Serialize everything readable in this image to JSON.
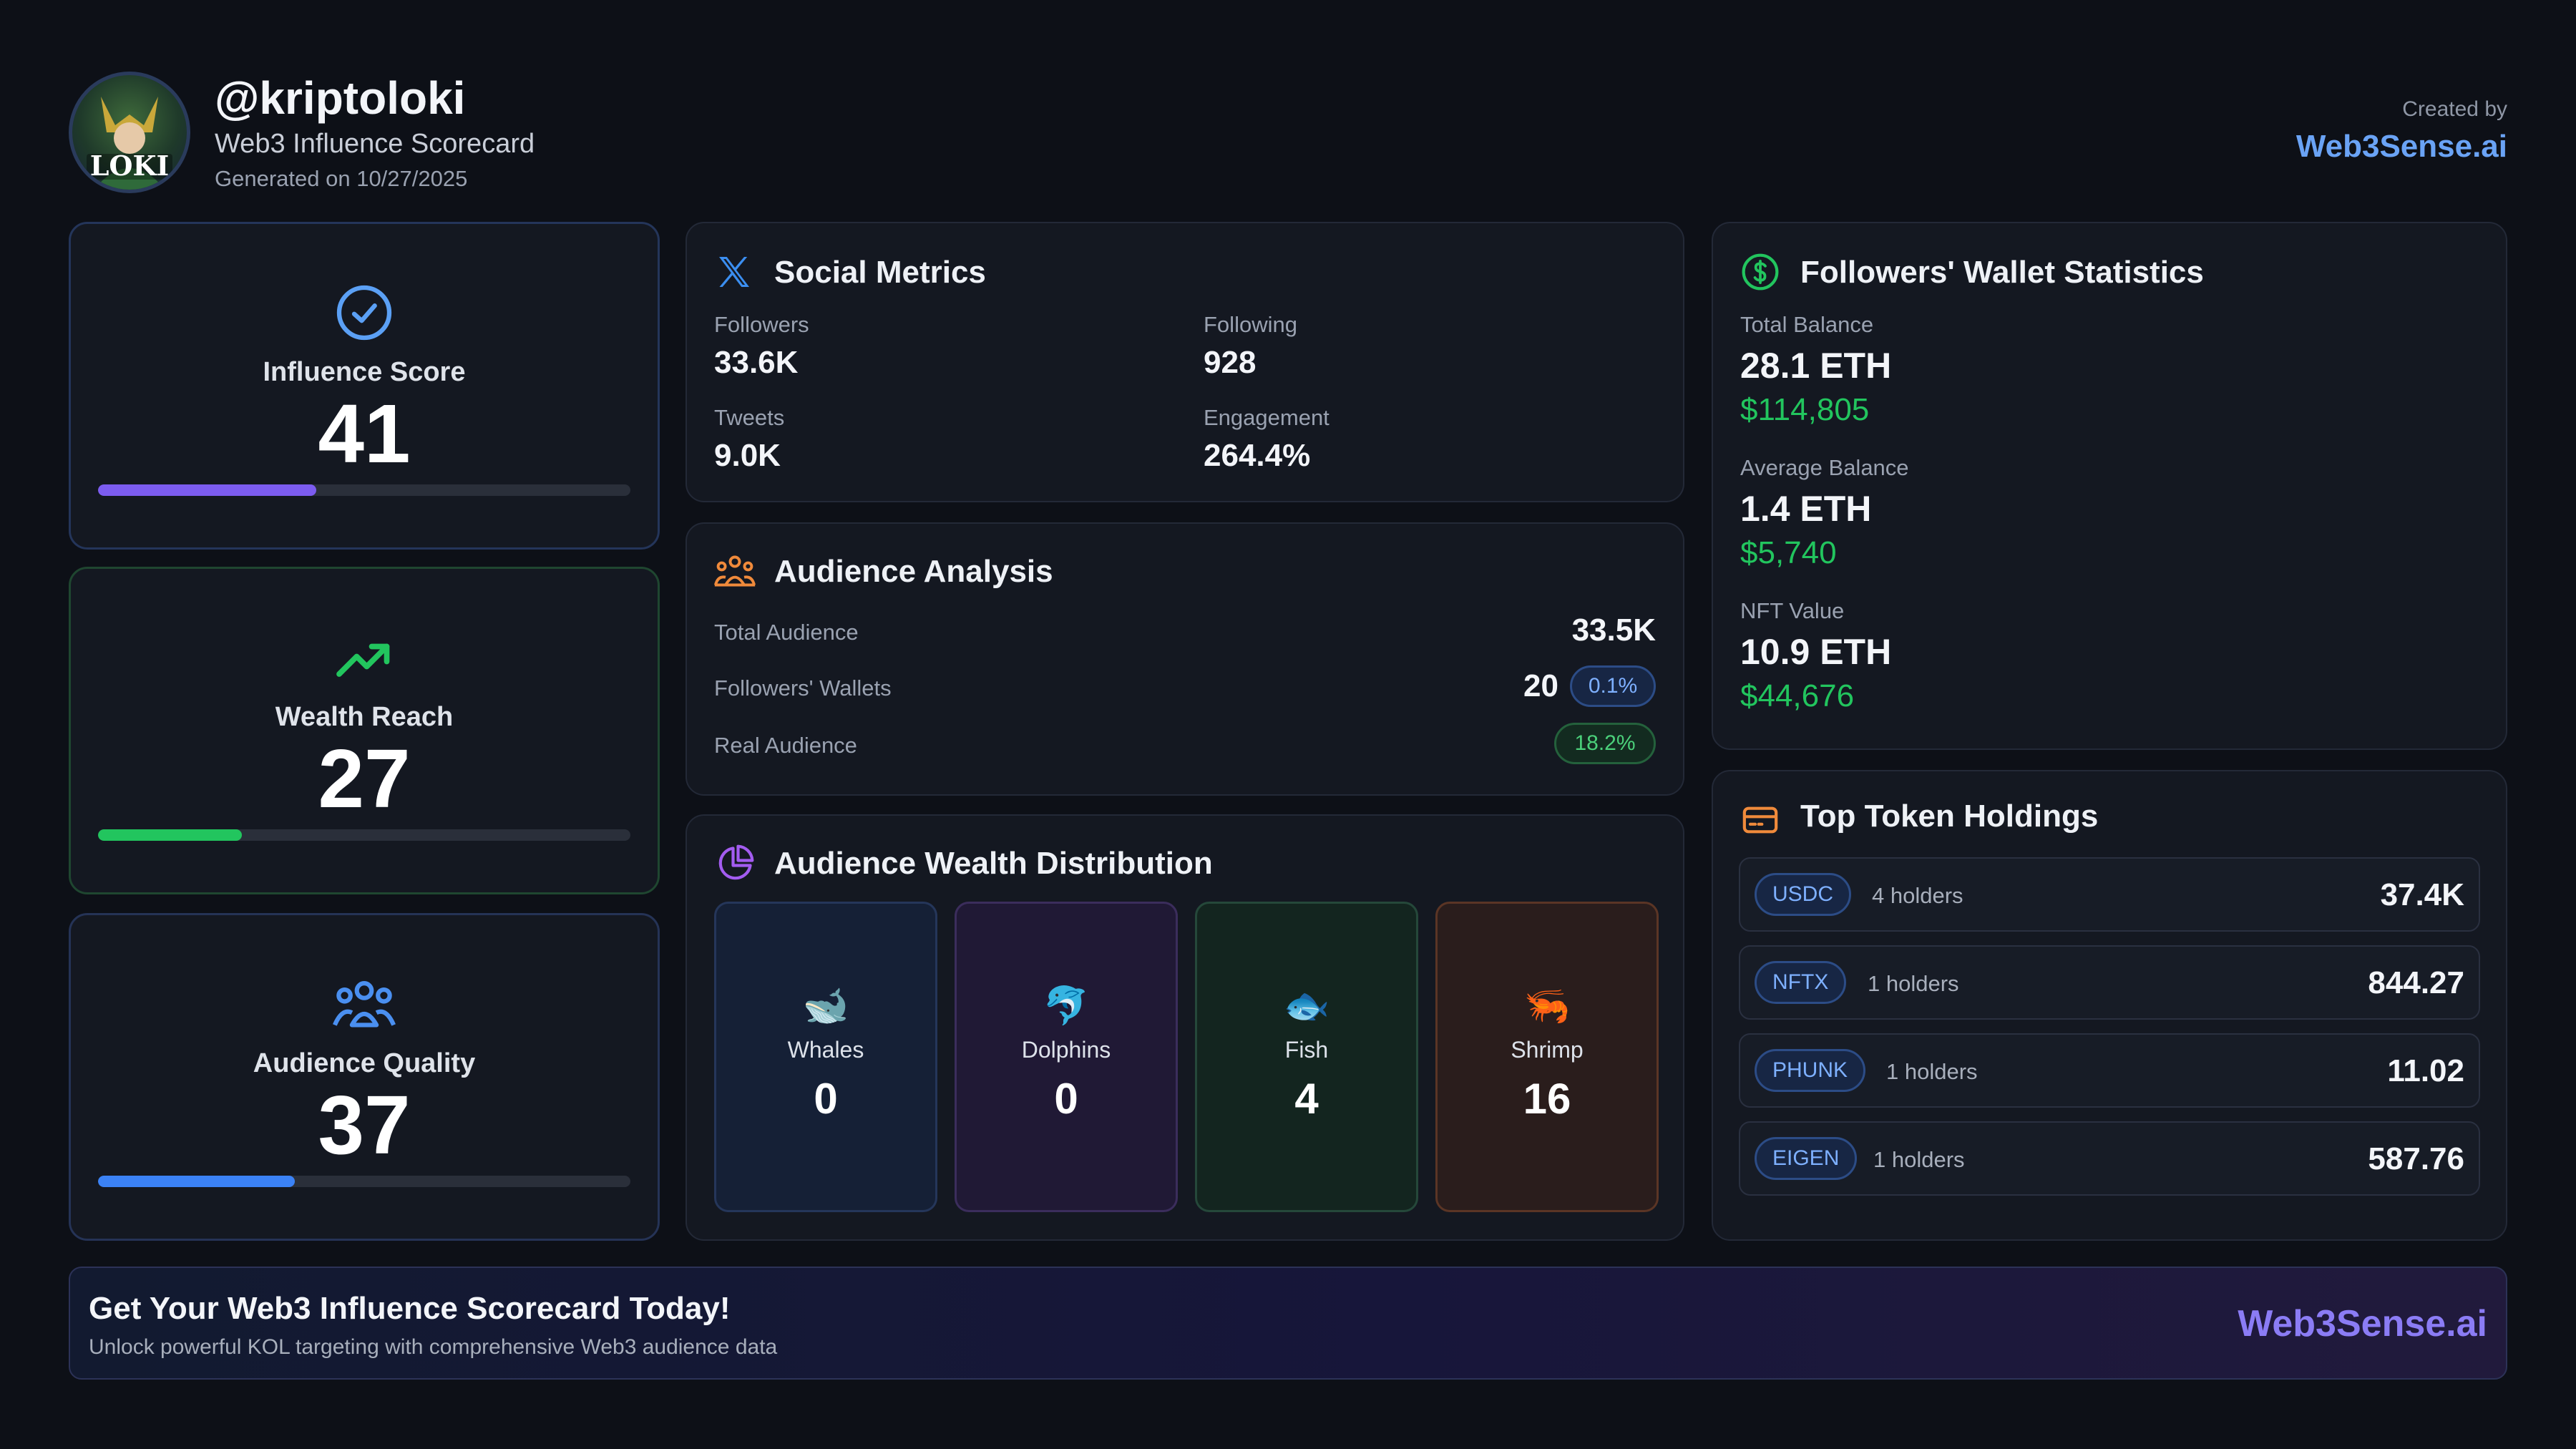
{
  "header": {
    "avatar_text": "LOKI",
    "handle": "@kriptoloki",
    "subtitle": "Web3 Influence Scorecard",
    "generated": "Generated on 10/27/2025",
    "created_by": "Created by",
    "brand": "Web3Sense.ai"
  },
  "scores": [
    {
      "label": "Influence Score",
      "value": "41",
      "progress": 0.41,
      "color": "#7c5cf0",
      "icon": "check-circle-icon"
    },
    {
      "label": "Wealth Reach",
      "value": "27",
      "progress": 0.27,
      "color": "#22c55e",
      "icon": "trending-up-icon"
    },
    {
      "label": "Audience Quality",
      "value": "37",
      "progress": 0.37,
      "color": "#3b82f6",
      "icon": "users-icon"
    }
  ],
  "social": {
    "title": "Social Metrics",
    "icon": "x-logo-icon",
    "followers_label": "Followers",
    "followers": "33.6K",
    "following_label": "Following",
    "following": "928",
    "tweets_label": "Tweets",
    "tweets": "9.0K",
    "engagement_label": "Engagement",
    "engagement": "264.4%"
  },
  "audience": {
    "title": "Audience Analysis",
    "icon": "group-icon",
    "total_label": "Total Audience",
    "total": "33.5K",
    "wallets_label": "Followers' Wallets",
    "wallets": "20",
    "wallets_pct": "0.1%",
    "real_label": "Real Audience",
    "real_pct": "18.2%"
  },
  "distribution": {
    "title": "Audience Wealth Distribution",
    "icon": "pie-chart-icon",
    "tiers": [
      {
        "label": "Whales",
        "value": "0",
        "icon": "whale-icon",
        "glyph": "🐋",
        "bg": "#152036",
        "border": "#25365a"
      },
      {
        "label": "Dolphins",
        "value": "0",
        "icon": "dolphin-icon",
        "glyph": "🐬",
        "bg": "#201935",
        "border": "#3b2d5c"
      },
      {
        "label": "Fish",
        "value": "4",
        "icon": "fish-icon",
        "glyph": "🐟",
        "bg": "#13251f",
        "border": "#25483a"
      },
      {
        "label": "Shrimp",
        "value": "16",
        "icon": "shrimp-icon",
        "glyph": "🦐",
        "bg": "#2a1d1c",
        "border": "#5b3525"
      }
    ]
  },
  "wallet": {
    "title": "Followers' Wallet Statistics",
    "icon": "dollar-circle-icon",
    "total_label": "Total Balance",
    "total_eth": "28.1 ETH",
    "total_usd": "$114,805",
    "avg_label": "Average Balance",
    "avg_eth": "1.4 ETH",
    "avg_usd": "$5,740",
    "nft_label": "NFT Value",
    "nft_eth": "10.9 ETH",
    "nft_usd": "$44,676"
  },
  "tokens": {
    "title": "Top Token Holdings",
    "icon": "wallet-card-icon",
    "rows": [
      {
        "symbol": "USDC",
        "holders": "4 holders",
        "value": "37.4K"
      },
      {
        "symbol": "NFTX",
        "holders": "1 holders",
        "value": "844.27"
      },
      {
        "symbol": "PHUNK",
        "holders": "1 holders",
        "value": "11.02"
      },
      {
        "symbol": "EIGEN",
        "holders": "1 holders",
        "value": "587.76"
      }
    ]
  },
  "cta": {
    "title": "Get Your Web3 Influence Scorecard Today!",
    "subtitle": "Unlock powerful KOL targeting with comprehensive Web3 audience data",
    "brand": "Web3Sense.ai"
  }
}
